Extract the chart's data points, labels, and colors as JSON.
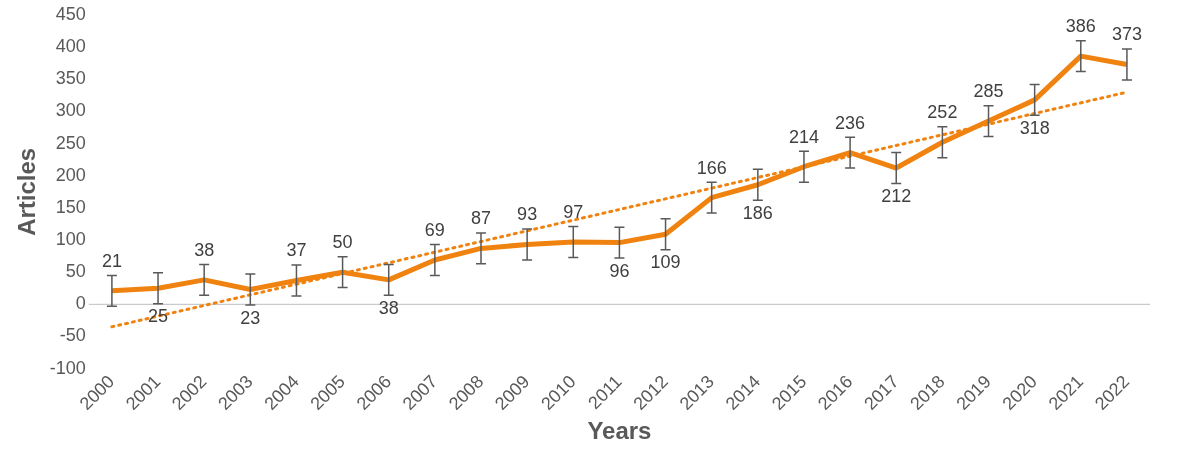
{
  "chart_data": {
    "type": "line",
    "xlabel": "Years",
    "ylabel": "Articles",
    "categories": [
      "2000",
      "2001",
      "2002",
      "2003",
      "2004",
      "2005",
      "2006",
      "2007",
      "2008",
      "2009",
      "2010",
      "2011",
      "2012",
      "2013",
      "2014",
      "2015",
      "2016",
      "2017",
      "2018",
      "2019",
      "2020",
      "2021",
      "2022"
    ],
    "series": [
      {
        "color": "#f0820f",
        "values": [
          21,
          25,
          38,
          23,
          37,
          50,
          38,
          69,
          87,
          93,
          97,
          96,
          109,
          166,
          186,
          214,
          236,
          212,
          252,
          285,
          318,
          386,
          373
        ],
        "errors": [
          24,
          24,
          24,
          24,
          24,
          24,
          24,
          24,
          24,
          24,
          24,
          24,
          24,
          24,
          24,
          24,
          24,
          24,
          24,
          24,
          24,
          24,
          24
        ],
        "value_labels": [
          "21",
          "25",
          "38",
          "23",
          "37",
          "50",
          "38",
          "69",
          "87",
          "93",
          "97",
          "96",
          "109",
          "166",
          "186",
          "214",
          "236",
          "212",
          "252",
          "285",
          "318",
          "386",
          "373"
        ]
      },
      {
        "color": "#f0820f",
        "line_style": "dotted",
        "values": [
          -35,
          null,
          null,
          null,
          null,
          null,
          null,
          null,
          null,
          null,
          null,
          null,
          null,
          null,
          null,
          null,
          null,
          null,
          null,
          null,
          null,
          null,
          330
        ]
      }
    ],
    "ref_lines": [
      {
        "axis": "y",
        "value": 0,
        "color": "#bfbfbf"
      }
    ],
    "ylim": [
      -100,
      450
    ],
    "yticks": [
      -100,
      -50,
      0,
      50,
      100,
      150,
      200,
      250,
      300,
      350,
      400,
      450
    ],
    "legend": false,
    "marker": "none"
  }
}
